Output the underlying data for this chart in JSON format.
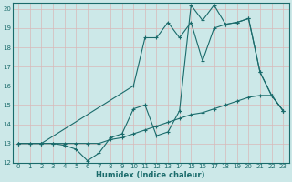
{
  "xlabel": "Humidex (Indice chaleur)",
  "bg_color": "#cce8e8",
  "grid_color": "#b0d0d0",
  "line_color": "#1a6b6b",
  "xlim": [
    -0.5,
    23.5
  ],
  "ylim": [
    12,
    20.3
  ],
  "xticks": [
    0,
    1,
    2,
    3,
    4,
    5,
    6,
    7,
    8,
    9,
    10,
    11,
    12,
    13,
    14,
    15,
    16,
    17,
    18,
    19,
    20,
    21,
    22,
    23
  ],
  "yticks": [
    12,
    13,
    14,
    15,
    16,
    17,
    18,
    19,
    20
  ],
  "line1_x": [
    0,
    1,
    2,
    3,
    4,
    5,
    6,
    7,
    8,
    9,
    10,
    11,
    12,
    13,
    14,
    15,
    16,
    17,
    18,
    19,
    20,
    21,
    22,
    23
  ],
  "line1_y": [
    13,
    13,
    13,
    13,
    12.9,
    12.7,
    12.1,
    12.5,
    13.3,
    13.5,
    14.8,
    15.0,
    13.4,
    13.6,
    14.7,
    20.2,
    19.4,
    20.2,
    19.2,
    19.3,
    19.5,
    16.7,
    15.5,
    14.7
  ],
  "line2_x": [
    0,
    2,
    10,
    11,
    12,
    13,
    14,
    15,
    16,
    17,
    18,
    19,
    20,
    21,
    22,
    23
  ],
  "line2_y": [
    13,
    13,
    16.0,
    18.5,
    18.5,
    19.3,
    18.5,
    19.3,
    17.3,
    19.0,
    19.2,
    19.3,
    19.5,
    16.7,
    15.5,
    14.7
  ],
  "line3_x": [
    0,
    1,
    2,
    3,
    4,
    5,
    6,
    7,
    8,
    9,
    10,
    11,
    12,
    13,
    14,
    15,
    16,
    17,
    18,
    19,
    20,
    21,
    22,
    23
  ],
  "line3_y": [
    13,
    13,
    13,
    13,
    13,
    13,
    13,
    13,
    13.2,
    13.3,
    13.5,
    13.7,
    13.9,
    14.1,
    14.3,
    14.5,
    14.6,
    14.8,
    15.0,
    15.2,
    15.4,
    15.5,
    15.5,
    14.7
  ]
}
